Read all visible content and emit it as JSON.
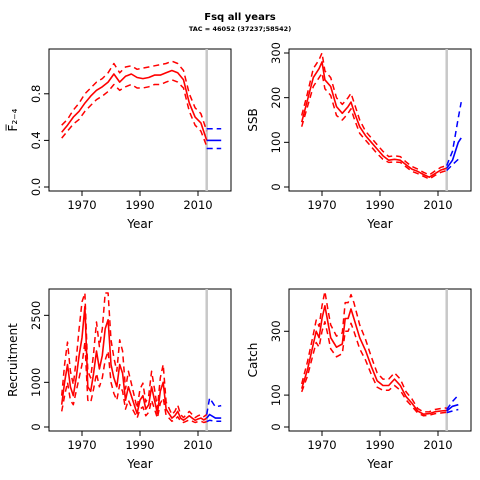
{
  "figure": {
    "title": "Fsq all years",
    "subtitle": "TAC = 46052 (37237;58542)"
  },
  "colors": {
    "historic": "#ff0000",
    "forecast": "#0000ff",
    "assessment_year_line": "#c8c8c8"
  },
  "chart_data": [
    {
      "type": "line",
      "id": "fbar",
      "title": "",
      "xlabel": "Year",
      "ylabel": "F̅₂₋₄",
      "xlim": [
        1960,
        2020
      ],
      "ylim": [
        0,
        1.15
      ],
      "xticks": [
        1970,
        1990,
        2010
      ],
      "yticks": [
        0.0,
        0.4,
        0.8
      ],
      "ytick_labels": [
        "0.0",
        "0.4",
        "0.8"
      ],
      "assessment_year": 2013,
      "series": [
        {
          "role": "historic",
          "x": [
            1963,
            1965,
            1967,
            1969,
            1971,
            1973,
            1975,
            1977,
            1979,
            1981,
            1983,
            1985,
            1987,
            1989,
            1991,
            1993,
            1995,
            1997,
            1999,
            2001,
            2003,
            2005,
            2007,
            2009,
            2011,
            2013
          ],
          "median": [
            0.47,
            0.53,
            0.6,
            0.65,
            0.72,
            0.78,
            0.83,
            0.86,
            0.9,
            0.97,
            0.9,
            0.95,
            0.97,
            0.94,
            0.93,
            0.94,
            0.96,
            0.96,
            0.98,
            1.0,
            0.98,
            0.92,
            0.72,
            0.6,
            0.55,
            0.4
          ],
          "lower": [
            0.42,
            0.48,
            0.54,
            0.58,
            0.65,
            0.7,
            0.75,
            0.78,
            0.82,
            0.88,
            0.83,
            0.86,
            0.88,
            0.85,
            0.85,
            0.86,
            0.88,
            0.88,
            0.9,
            0.92,
            0.9,
            0.85,
            0.65,
            0.53,
            0.48,
            0.35
          ],
          "upper": [
            0.53,
            0.58,
            0.66,
            0.72,
            0.8,
            0.85,
            0.9,
            0.93,
            0.98,
            1.06,
            0.98,
            1.03,
            1.04,
            1.01,
            1.02,
            1.03,
            1.04,
            1.05,
            1.06,
            1.08,
            1.06,
            1.0,
            0.8,
            0.68,
            0.63,
            0.48
          ]
        },
        {
          "role": "forecast",
          "x": [
            2013,
            2018
          ],
          "median": [
            0.4,
            0.4
          ],
          "lower": [
            0.33,
            0.33
          ],
          "upper": [
            0.5,
            0.5
          ]
        }
      ]
    },
    {
      "type": "line",
      "id": "ssb",
      "title": "",
      "xlabel": "Year",
      "ylabel": "SSB",
      "xlim": [
        1960,
        2020
      ],
      "ylim": [
        0,
        300
      ],
      "xticks": [
        1970,
        1990,
        2010
      ],
      "yticks": [
        0,
        100,
        200,
        300
      ],
      "ytick_labels": [
        "0",
        "100",
        "200",
        "300"
      ],
      "assessment_year": 2013,
      "series": [
        {
          "role": "historic",
          "x": [
            1963,
            1965,
            1967,
            1969,
            1970,
            1971,
            1973,
            1975,
            1977,
            1979,
            1980,
            1981,
            1983,
            1985,
            1987,
            1989,
            1991,
            1993,
            1995,
            1997,
            1999,
            2001,
            2003,
            2005,
            2007,
            2009,
            2011,
            2013
          ],
          "median": [
            145,
            195,
            245,
            265,
            280,
            240,
            225,
            180,
            165,
            180,
            190,
            170,
            135,
            115,
            100,
            85,
            70,
            60,
            62,
            60,
            50,
            40,
            35,
            28,
            22,
            30,
            38,
            42
          ],
          "lower": [
            135,
            180,
            225,
            245,
            255,
            220,
            205,
            160,
            150,
            165,
            175,
            155,
            120,
            105,
            90,
            75,
            62,
            55,
            56,
            55,
            45,
            35,
            30,
            24,
            18,
            26,
            33,
            37
          ],
          "upper": [
            160,
            210,
            265,
            285,
            300,
            260,
            245,
            200,
            185,
            200,
            210,
            190,
            150,
            125,
            110,
            95,
            80,
            68,
            70,
            68,
            56,
            46,
            40,
            33,
            27,
            36,
            44,
            48
          ]
        },
        {
          "role": "forecast",
          "x": [
            2013,
            2015,
            2017,
            2018
          ],
          "median": [
            42,
            60,
            100,
            110
          ],
          "lower": [
            37,
            50,
            62,
            65
          ],
          "upper": [
            48,
            80,
            155,
            190
          ]
        }
      ]
    },
    {
      "type": "line",
      "id": "recruitment",
      "title": "",
      "xlabel": "Year",
      "ylabel": "Recruitment",
      "xlim": [
        1960,
        2020
      ],
      "ylim": [
        0,
        3000
      ],
      "xticks": [
        1970,
        1990,
        2010
      ],
      "yticks": [
        0,
        1000,
        2500
      ],
      "ytick_labels": [
        "0",
        "1000",
        "2500"
      ],
      "assessment_year": 2013,
      "series": [
        {
          "role": "historic",
          "x": [
            1963,
            1964,
            1965,
            1966,
            1967,
            1968,
            1969,
            1970,
            1971,
            1972,
            1973,
            1974,
            1975,
            1976,
            1977,
            1978,
            1979,
            1980,
            1981,
            1982,
            1983,
            1984,
            1985,
            1986,
            1987,
            1988,
            1989,
            1990,
            1991,
            1992,
            1993,
            1994,
            1995,
            1996,
            1997,
            1998,
            1999,
            2000,
            2001,
            2002,
            2003,
            2004,
            2005,
            2006,
            2007,
            2008,
            2009,
            2010,
            2011,
            2012,
            2013
          ],
          "median": [
            500,
            1000,
            1400,
            900,
            700,
            1100,
            1600,
            2000,
            2700,
            900,
            800,
            1200,
            1700,
            1300,
            1600,
            2200,
            2400,
            1400,
            1100,
            900,
            1400,
            1200,
            600,
            900,
            700,
            500,
            300,
            600,
            700,
            400,
            500,
            900,
            600,
            300,
            800,
            1000,
            400,
            300,
            200,
            250,
            350,
            200,
            150,
            200,
            250,
            200,
            150,
            180,
            200,
            160,
            200
          ],
          "lower": [
            350,
            700,
            1000,
            600,
            500,
            800,
            1100,
            1400,
            1900,
            600,
            550,
            850,
            1200,
            900,
            1100,
            1500,
            1700,
            1000,
            750,
            600,
            950,
            800,
            400,
            600,
            450,
            330,
            200,
            400,
            450,
            250,
            330,
            600,
            400,
            200,
            530,
            650,
            260,
            200,
            130,
            160,
            230,
            130,
            100,
            130,
            160,
            130,
            100,
            120,
            130,
            100,
            120
          ],
          "upper": [
            700,
            1400,
            1900,
            1250,
            950,
            1500,
            2200,
            2800,
            3000,
            1250,
            1100,
            1650,
            2350,
            1800,
            2200,
            3000,
            3000,
            1950,
            1550,
            1250,
            1950,
            1700,
            850,
            1250,
            980,
            700,
            420,
            850,
            980,
            560,
            700,
            1250,
            850,
            420,
            1100,
            1400,
            560,
            420,
            280,
            350,
            490,
            280,
            210,
            280,
            350,
            280,
            210,
            250,
            280,
            230,
            280
          ]
        },
        {
          "role": "forecast",
          "x": [
            2013,
            2014,
            2016,
            2018
          ],
          "median": [
            200,
            280,
            200,
            200
          ],
          "lower": [
            120,
            150,
            130,
            130
          ],
          "upper": [
            280,
            650,
            450,
            480
          ]
        }
      ]
    },
    {
      "type": "line",
      "id": "catch",
      "title": "",
      "xlabel": "Year",
      "ylabel": "Catch",
      "xlim": [
        1960,
        2020
      ],
      "ylim": [
        0,
        420
      ],
      "xticks": [
        1970,
        1990,
        2010
      ],
      "yticks": [
        0,
        100,
        300
      ],
      "ytick_labels": [
        "0",
        "100",
        "300"
      ],
      "assessment_year": 2013,
      "series": [
        {
          "role": "historic",
          "x": [
            1963,
            1965,
            1967,
            1968,
            1969,
            1970,
            1971,
            1972,
            1973,
            1975,
            1977,
            1978,
            1979,
            1980,
            1981,
            1983,
            1985,
            1987,
            1989,
            1991,
            1993,
            1995,
            1997,
            1999,
            2001,
            2003,
            2005,
            2007,
            2009,
            2011,
            2013
          ],
          "median": [
            120,
            180,
            260,
            300,
            280,
            340,
            380,
            330,
            280,
            250,
            260,
            340,
            340,
            370,
            340,
            280,
            240,
            190,
            145,
            130,
            130,
            150,
            130,
            95,
            75,
            50,
            40,
            42,
            48,
            50,
            52
          ],
          "lower": [
            110,
            160,
            230,
            265,
            250,
            300,
            330,
            290,
            245,
            220,
            230,
            300,
            300,
            325,
            300,
            245,
            210,
            165,
            125,
            115,
            115,
            130,
            115,
            85,
            65,
            44,
            35,
            37,
            42,
            44,
            46
          ],
          "upper": [
            135,
            205,
            290,
            335,
            315,
            380,
            425,
            370,
            320,
            285,
            295,
            390,
            390,
            415,
            390,
            320,
            275,
            220,
            170,
            150,
            150,
            170,
            150,
            110,
            88,
            58,
            47,
            48,
            55,
            58,
            60
          ]
        },
        {
          "role": "forecast",
          "x": [
            2013,
            2015,
            2017
          ],
          "median": [
            50,
            65,
            70
          ],
          "lower": [
            45,
            50,
            55
          ],
          "upper": [
            55,
            80,
            100
          ]
        }
      ]
    }
  ]
}
